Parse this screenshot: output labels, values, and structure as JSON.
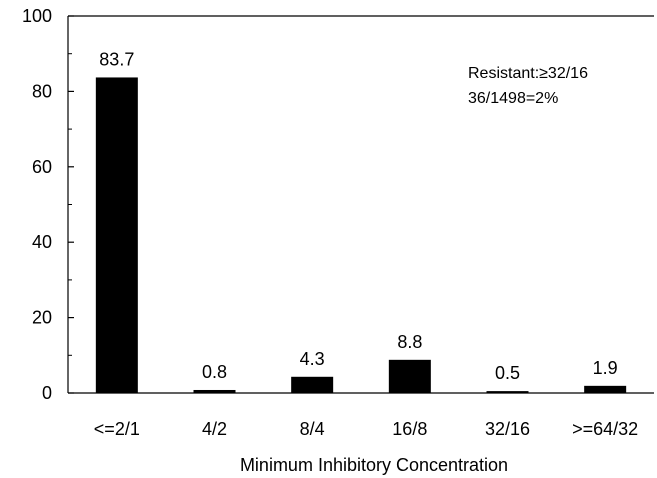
{
  "chart_data": {
    "type": "bar",
    "title": "",
    "xlabel": "Minimum Inhibitory Concentration",
    "ylabel": "",
    "ylim": [
      0,
      100
    ],
    "yticks": [
      0,
      20,
      40,
      60,
      80,
      100
    ],
    "grid": false,
    "categories": [
      "<=2/1",
      "4/2",
      "8/4",
      "16/8",
      "32/16",
      ">=64/32"
    ],
    "values": [
      83.7,
      0.8,
      4.3,
      8.8,
      0.5,
      1.9
    ],
    "data_labels": [
      "83.7",
      "0.8",
      "4.3",
      "8.8",
      "0.5",
      "1.9"
    ],
    "bar_color": "#000000",
    "annotations": [
      "Resistant:≥32/16",
      "36/1498=2%"
    ]
  }
}
